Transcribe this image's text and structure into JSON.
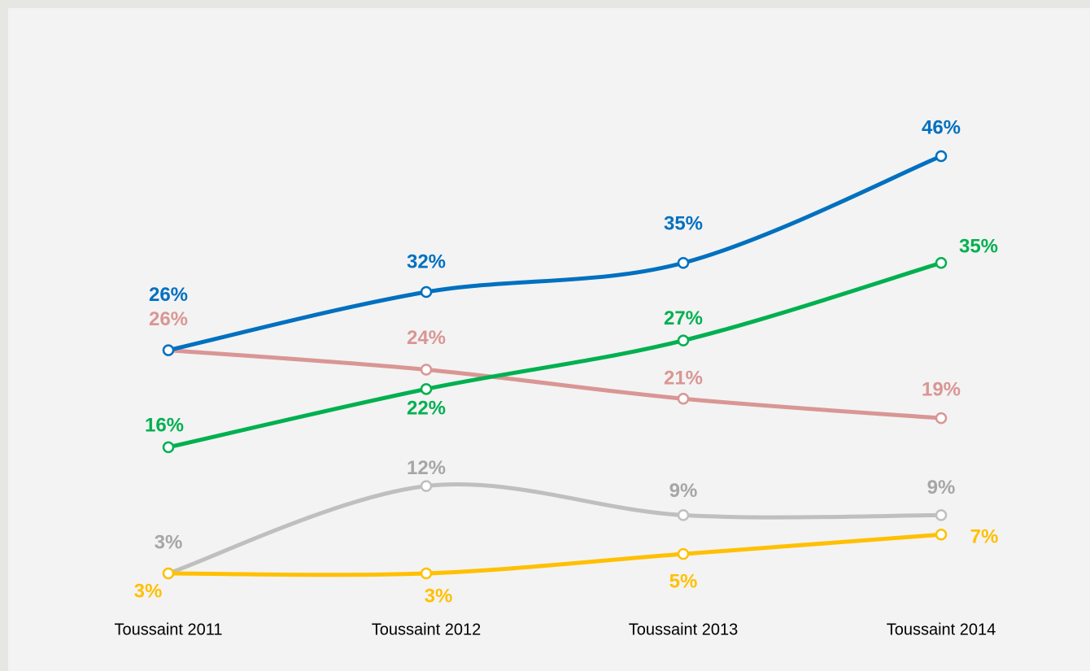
{
  "chart_data": {
    "type": "line",
    "categories": [
      "Toussaint 2011",
      "Toussaint 2012",
      "Toussaint 2013",
      "Toussaint 2014"
    ],
    "series": [
      {
        "color": "#bfbfbf",
        "values": [
          3,
          12,
          9,
          9
        ],
        "value_labels": [
          "3%",
          "12%",
          "9%",
          "9%"
        ]
      },
      {
        "color": "#ffc000",
        "values": [
          3,
          3,
          5,
          7
        ],
        "value_labels": [
          "3%",
          "3%",
          "5%",
          "7%"
        ]
      },
      {
        "color": "#d99694",
        "values": [
          26,
          24,
          21,
          19
        ],
        "value_labels": [
          "26%",
          "24%",
          "21%",
          "19%"
        ]
      },
      {
        "color": "#00b050",
        "values": [
          16,
          22,
          27,
          35
        ],
        "value_labels": [
          "16%",
          "22%",
          "27%",
          "35%"
        ]
      },
      {
        "color": "#0070c0",
        "values": [
          26,
          32,
          35,
          46
        ],
        "value_labels": [
          "26%",
          "32%",
          "35%",
          "46%"
        ]
      }
    ]
  }
}
